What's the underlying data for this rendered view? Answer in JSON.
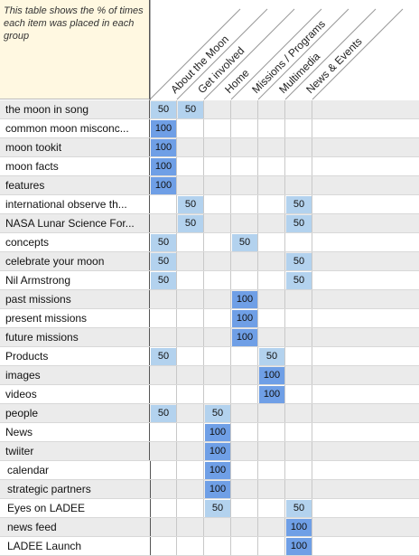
{
  "note": "This table shows the % of times each item was placed in each group",
  "columns": [
    "About the Moon",
    "Get involved",
    "Home",
    "Missions / Programs",
    "Multimedia",
    "News & Events"
  ],
  "rows": [
    {
      "label": "the moon in song",
      "values": [
        50,
        50,
        null,
        null,
        null,
        null
      ]
    },
    {
      "label": "common moon misconc...",
      "values": [
        100,
        null,
        null,
        null,
        null,
        null
      ]
    },
    {
      "label": "moon tookit",
      "values": [
        100,
        null,
        null,
        null,
        null,
        null
      ]
    },
    {
      "label": "moon facts",
      "values": [
        100,
        null,
        null,
        null,
        null,
        null
      ]
    },
    {
      "label": "features",
      "values": [
        100,
        null,
        null,
        null,
        null,
        null
      ]
    },
    {
      "label": "international observe th...",
      "values": [
        null,
        50,
        null,
        null,
        null,
        50
      ]
    },
    {
      "label": "NASA Lunar Science For...",
      "values": [
        null,
        50,
        null,
        null,
        null,
        50
      ]
    },
    {
      "label": "concepts",
      "values": [
        50,
        null,
        null,
        50,
        null,
        null
      ]
    },
    {
      "label": "celebrate your moon",
      "values": [
        50,
        null,
        null,
        null,
        null,
        50
      ]
    },
    {
      "label": "Nil Armstrong",
      "values": [
        50,
        null,
        null,
        null,
        null,
        50
      ]
    },
    {
      "label": "past missions",
      "values": [
        null,
        null,
        null,
        100,
        null,
        null
      ]
    },
    {
      "label": "present missions",
      "values": [
        null,
        null,
        null,
        100,
        null,
        null
      ]
    },
    {
      "label": "future missions",
      "values": [
        null,
        null,
        null,
        100,
        null,
        null
      ]
    },
    {
      "label": "Products",
      "values": [
        50,
        null,
        null,
        null,
        50,
        null
      ]
    },
    {
      "label": "images",
      "values": [
        null,
        null,
        null,
        null,
        100,
        null
      ]
    },
    {
      "label": "videos",
      "values": [
        null,
        null,
        null,
        null,
        100,
        null
      ]
    },
    {
      "label": "people",
      "values": [
        50,
        null,
        50,
        null,
        null,
        null
      ]
    },
    {
      "label": "News",
      "values": [
        null,
        null,
        100,
        null,
        null,
        null
      ]
    },
    {
      "label": "twiiter",
      "values": [
        null,
        null,
        100,
        null,
        null,
        null
      ]
    },
    {
      "label": "calendar",
      "values": [
        null,
        null,
        100,
        null,
        null,
        null
      ]
    },
    {
      "label": "strategic partners",
      "values": [
        null,
        null,
        100,
        null,
        null,
        null
      ]
    },
    {
      "label": "Eyes on LADEE",
      "values": [
        null,
        null,
        50,
        null,
        null,
        50
      ]
    },
    {
      "label": "news feed",
      "values": [
        null,
        null,
        null,
        null,
        null,
        100
      ]
    },
    {
      "label": "LADEE Launch",
      "values": [
        null,
        null,
        null,
        null,
        null,
        100
      ]
    }
  ],
  "colors": {
    "v50": "#b3d2ee",
    "v100": "#6f9fe6",
    "note_bg": "#fff8e1"
  }
}
